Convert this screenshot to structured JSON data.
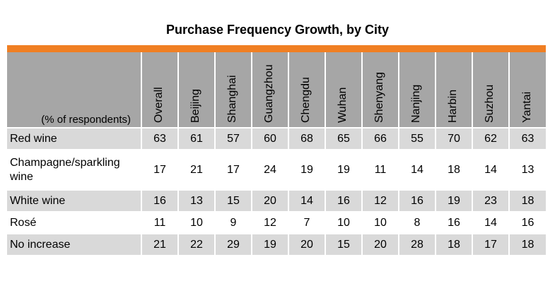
{
  "chart_data": {
    "type": "table",
    "title": "Purchase Frequency Growth, by City",
    "header_label": "(% of respondents)",
    "columns": [
      "Overall",
      "Beijing",
      "Shanghai",
      "Guangzhou",
      "Chengdu",
      "Wuhan",
      "Shenyang",
      "Nanjing",
      "Harbin",
      "Suzhou",
      "Yantai"
    ],
    "rows": [
      {
        "label": "Red wine",
        "values": [
          63,
          61,
          57,
          60,
          68,
          65,
          66,
          55,
          70,
          62,
          63
        ]
      },
      {
        "label": "Champagne/sparkling wine",
        "values": [
          17,
          21,
          17,
          24,
          19,
          19,
          11,
          14,
          18,
          14,
          13
        ]
      },
      {
        "label": "White wine",
        "values": [
          16,
          13,
          15,
          20,
          14,
          16,
          12,
          16,
          19,
          23,
          18
        ]
      },
      {
        "label": "Rosé",
        "values": [
          11,
          10,
          9,
          12,
          7,
          10,
          10,
          8,
          16,
          14,
          16
        ]
      },
      {
        "label": "No increase",
        "values": [
          21,
          22,
          29,
          19,
          20,
          15,
          20,
          28,
          18,
          17,
          18
        ]
      }
    ]
  },
  "colors": {
    "accent_bar": "#f07f23",
    "header_background": "#a6a6a6",
    "shaded_row": "#d9d9d9",
    "plain_row": "#ffffff"
  }
}
